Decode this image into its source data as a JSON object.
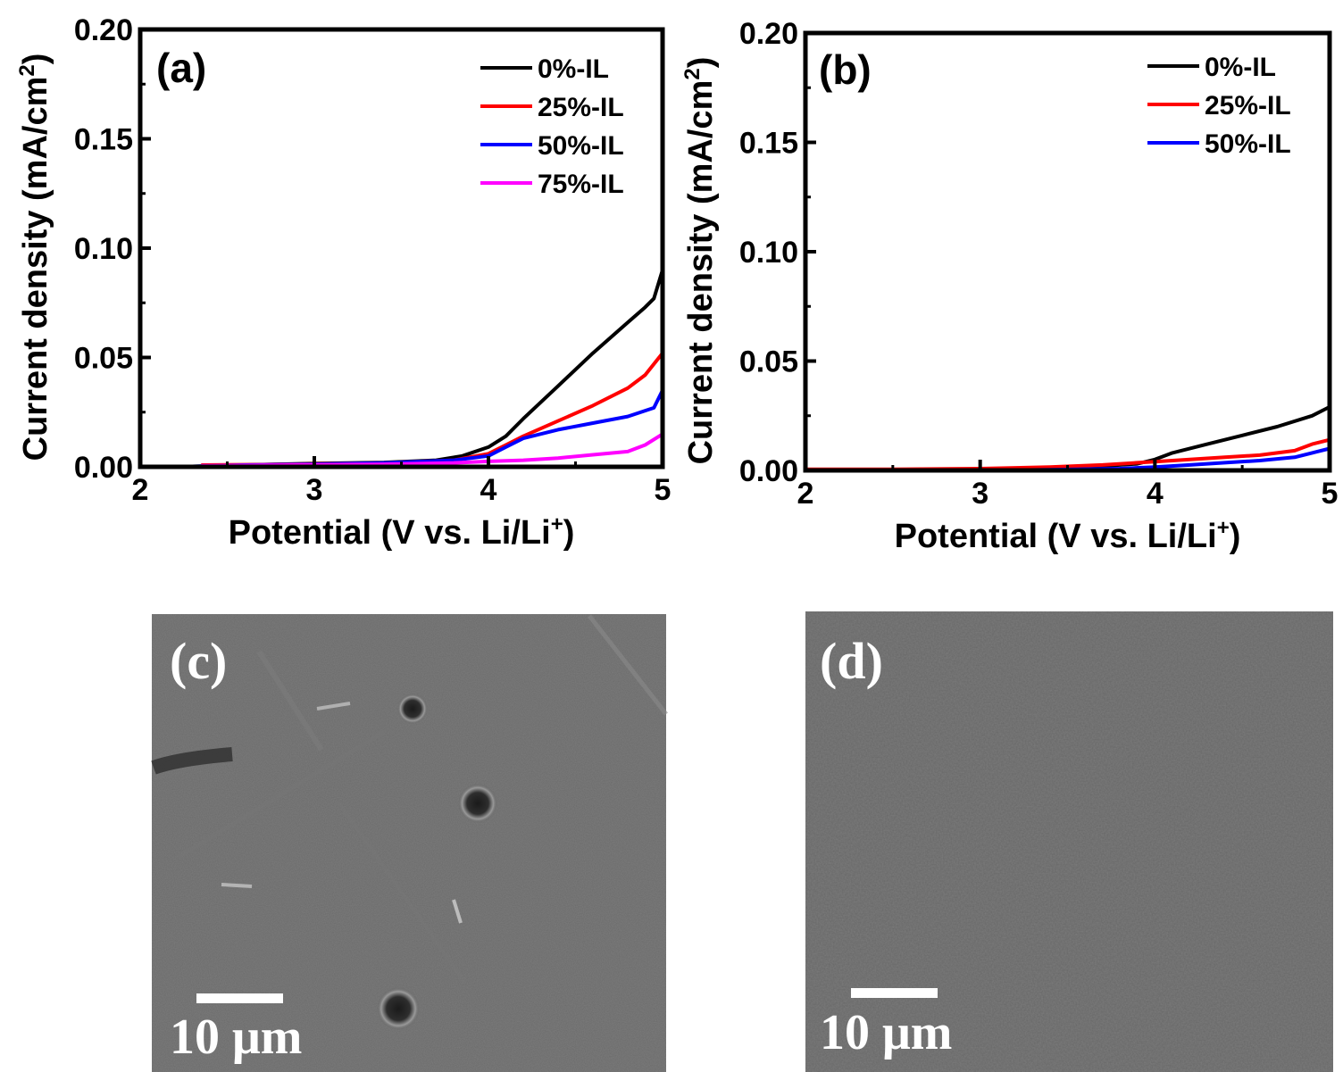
{
  "chart_data": [
    {
      "type": "line",
      "panel_label": "(a)",
      "xlabel": "Potential (V vs. Li/Li",
      "xlabel_sup": "+",
      "xlabel_end": ")",
      "ylabel": "Current density (mA/cm",
      "ylabel_sup": "2",
      "ylabel_end": ")",
      "xlim": [
        2,
        5
      ],
      "ylim": [
        0,
        0.2
      ],
      "x_ticks": [
        "2",
        "3",
        "4",
        "5"
      ],
      "y_ticks": [
        "0.00",
        "0.05",
        "0.10",
        "0.15",
        "0.20"
      ],
      "legend_position": "top-right",
      "series": [
        {
          "name": "0%-IL",
          "color": "#000000",
          "x": [
            2.2,
            2.6,
            3.0,
            3.4,
            3.7,
            3.85,
            4.0,
            4.1,
            4.2,
            4.4,
            4.6,
            4.8,
            4.9,
            4.95,
            5.0
          ],
          "y": [
            0.0,
            0.0008,
            0.0015,
            0.002,
            0.003,
            0.005,
            0.009,
            0.014,
            0.022,
            0.037,
            0.052,
            0.066,
            0.073,
            0.077,
            0.09
          ]
        },
        {
          "name": "25%-IL",
          "color": "#ff0000",
          "x": [
            2.35,
            2.7,
            3.0,
            3.4,
            3.8,
            4.0,
            4.1,
            4.2,
            4.4,
            4.6,
            4.8,
            4.9,
            5.0
          ],
          "y": [
            0.0008,
            0.001,
            0.0013,
            0.0018,
            0.003,
            0.006,
            0.01,
            0.014,
            0.021,
            0.028,
            0.036,
            0.042,
            0.052
          ]
        },
        {
          "name": "50%-IL",
          "color": "#0000ff",
          "x": [
            2.2,
            2.6,
            3.0,
            3.4,
            3.8,
            4.0,
            4.1,
            4.2,
            4.4,
            4.6,
            4.8,
            4.95,
            5.0
          ],
          "y": [
            0.0,
            0.0008,
            0.0012,
            0.0018,
            0.003,
            0.005,
            0.009,
            0.013,
            0.017,
            0.02,
            0.023,
            0.027,
            0.035
          ]
        },
        {
          "name": "75%-IL",
          "color": "#ff00ff",
          "x": [
            2.35,
            2.7,
            3.0,
            3.4,
            3.8,
            4.0,
            4.2,
            4.4,
            4.6,
            4.8,
            4.9,
            5.0
          ],
          "y": [
            0.0005,
            0.0007,
            0.0009,
            0.0012,
            0.0018,
            0.0025,
            0.003,
            0.004,
            0.0055,
            0.007,
            0.01,
            0.015
          ]
        }
      ]
    },
    {
      "type": "line",
      "panel_label": "(b)",
      "xlabel": "Potential (V vs. Li/Li",
      "xlabel_sup": "+",
      "xlabel_end": ")",
      "ylabel": "Current density (mA/cm",
      "ylabel_sup": "2",
      "ylabel_end": ")",
      "xlim": [
        2,
        5
      ],
      "ylim": [
        0,
        0.2
      ],
      "x_ticks": [
        "2",
        "3",
        "4",
        "5"
      ],
      "y_ticks": [
        "0.00",
        "0.05",
        "0.10",
        "0.15",
        "0.20"
      ],
      "legend_position": "top-right",
      "series": [
        {
          "name": "0%-IL",
          "color": "#000000",
          "x": [
            2.0,
            2.5,
            3.0,
            3.4,
            3.7,
            3.9,
            4.0,
            4.1,
            4.3,
            4.5,
            4.7,
            4.9,
            5.0
          ],
          "y": [
            0.0,
            0.0003,
            0.0006,
            0.001,
            0.002,
            0.003,
            0.005,
            0.008,
            0.012,
            0.016,
            0.02,
            0.025,
            0.029
          ]
        },
        {
          "name": "25%-IL",
          "color": "#ff0000",
          "x": [
            2.0,
            2.5,
            3.0,
            3.4,
            3.7,
            3.9,
            4.0,
            4.2,
            4.4,
            4.6,
            4.8,
            4.9,
            5.0
          ],
          "y": [
            0.0005,
            0.0005,
            0.0008,
            0.0015,
            0.0025,
            0.0035,
            0.004,
            0.005,
            0.006,
            0.007,
            0.009,
            0.012,
            0.014
          ]
        },
        {
          "name": "50%-IL",
          "color": "#0000ff",
          "x": [
            3.0,
            3.4,
            3.8,
            4.0,
            4.2,
            4.4,
            4.6,
            4.8,
            4.9,
            5.0
          ],
          "y": [
            0.0,
            0.0003,
            0.0008,
            0.0015,
            0.0025,
            0.0035,
            0.0045,
            0.006,
            0.008,
            0.01
          ]
        }
      ]
    }
  ],
  "sem_panels": [
    {
      "label": "(c)",
      "scale_bar_text": "10 μm"
    },
    {
      "label": "(d)",
      "scale_bar_text": "10 μm"
    }
  ]
}
